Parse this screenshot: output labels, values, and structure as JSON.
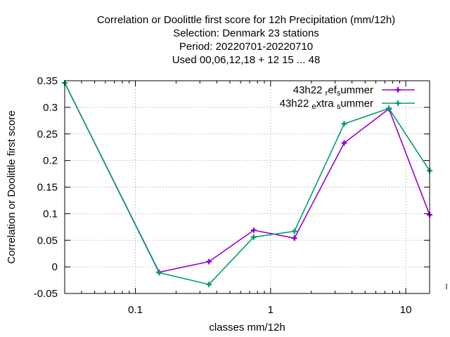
{
  "chart_data": {
    "type": "line",
    "title_lines": [
      "Correlation or Doolittle first score  for 12h Precipitation (mm/12h)",
      "Selection: Denmark     23 stations",
      "Period: 20220701-20220710",
      "Used  00,06,12,18  + 12 15 ... 48"
    ],
    "xlabel": "classes mm/12h",
    "ylabel": "Correlation or Doolittle first score",
    "x_scale": "log",
    "xlim": [
      0.03,
      15
    ],
    "ylim": [
      -0.05,
      0.35
    ],
    "x_tick_labels": [
      {
        "value": 0.1,
        "label": "0.1"
      },
      {
        "value": 1,
        "label": "1"
      },
      {
        "value": 10,
        "label": "10"
      }
    ],
    "y_tick_labels": [
      {
        "value": 0.35,
        "label": "0.35"
      },
      {
        "value": 0.3,
        "label": "0.3"
      },
      {
        "value": 0.25,
        "label": "0.25"
      },
      {
        "value": 0.2,
        "label": "0.2"
      },
      {
        "value": 0.15,
        "label": "0.15"
      },
      {
        "value": 0.1,
        "label": "0.1"
      },
      {
        "value": 0.05,
        "label": "0.05"
      },
      {
        "value": 0,
        "label": "0"
      },
      {
        "value": -0.05,
        "label": "-0.05"
      }
    ],
    "grid": true,
    "legend_position": "top-right",
    "series": [
      {
        "name": "43h22_ref_summer",
        "legend_parts": [
          [
            "43h22 ",
            "n"
          ],
          [
            "r",
            "s"
          ],
          [
            "ef",
            "n"
          ],
          [
            "s",
            "s"
          ],
          [
            "ummer",
            "n"
          ]
        ],
        "color": "#9400d3",
        "marker": "plus",
        "x": [
          0.03,
          0.15,
          0.35,
          0.75,
          1.5,
          3.5,
          7.5,
          15
        ],
        "y": [
          0.346,
          -0.01,
          0.01,
          0.069,
          0.054,
          0.233,
          0.297,
          0.098
        ]
      },
      {
        "name": "43h22_extra_summer",
        "legend_parts": [
          [
            "43h22 ",
            "n"
          ],
          [
            "e",
            "s"
          ],
          [
            "xtra ",
            "n"
          ],
          [
            "s",
            "s"
          ],
          [
            "ummer",
            "n"
          ]
        ],
        "color": "#009e73",
        "marker": "plus",
        "x": [
          0.03,
          0.15,
          0.35,
          0.75,
          1.5,
          3.5,
          7.5,
          15
        ],
        "y": [
          0.346,
          -0.011,
          -0.033,
          0.056,
          0.067,
          0.269,
          0.298,
          0.181
        ]
      }
    ]
  }
}
